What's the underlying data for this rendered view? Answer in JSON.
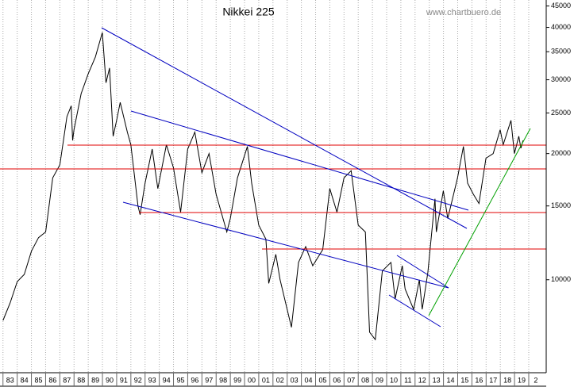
{
  "chart_data": {
    "type": "line",
    "title": "Nikkei 225",
    "subtitle": "www.chartbuero.de",
    "x": [
      1983.0,
      1983.5,
      1984.0,
      1984.5,
      1985.0,
      1985.5,
      1986.0,
      1986.5,
      1987.0,
      1987.5,
      1987.8,
      1987.9,
      1988.0,
      1988.5,
      1989.0,
      1989.5,
      1989.99,
      1990.25,
      1990.5,
      1990.75,
      1991.0,
      1991.25,
      1991.75,
      1992.0,
      1992.5,
      1992.65,
      1993.0,
      1993.5,
      1993.9,
      1994.5,
      1995.0,
      1995.5,
      1996.0,
      1996.5,
      1997.0,
      1997.5,
      1998.0,
      1998.75,
      1999.0,
      1999.5,
      2000.2,
      2000.5,
      2001.0,
      2001.5,
      2001.7,
      2002.2,
      2002.5,
      2003.3,
      2003.8,
      2004.3,
      2004.8,
      2005.5,
      2006.0,
      2006.5,
      2007.0,
      2007.5,
      2008.0,
      2008.5,
      2008.8,
      2009.2,
      2009.7,
      2010.3,
      2010.6,
      2011.1,
      2011.3,
      2011.9,
      2012.3,
      2012.5,
      2012.9,
      2013.4,
      2013.5,
      2013.99,
      2014.3,
      2014.99,
      2015.4,
      2015.7,
      2016.1,
      2016.5,
      2016.99,
      2017.5,
      2017.99,
      2018.2,
      2018.75,
      2018.99,
      2019.3,
      2019.45,
      2019.6
    ],
    "values": [
      8000,
      8800,
      9900,
      10300,
      11700,
      12600,
      13000,
      17500,
      18800,
      24500,
      26000,
      21500,
      22800,
      27800,
      31000,
      34000,
      38900,
      29500,
      32000,
      22000,
      24000,
      26500,
      22500,
      21000,
      15000,
      14300,
      17000,
      20500,
      16500,
      21000,
      18500,
      14500,
      20500,
      22500,
      18000,
      20000,
      16000,
      13000,
      14000,
      17500,
      20800,
      17000,
      13500,
      12500,
      9800,
      11500,
      10000,
      7700,
      11000,
      12000,
      10800,
      11800,
      16500,
      14500,
      17500,
      18200,
      13500,
      13000,
      7500,
      7200,
      10500,
      11000,
      9000,
      10800,
      9500,
      8500,
      10000,
      8500,
      10400,
      15600,
      13000,
      16300,
      14000,
      17500,
      20800,
      17000,
      16000,
      15200,
      19500,
      20000,
      22800,
      21000,
      24000,
      20000,
      22000,
      20600,
      21500
    ],
    "color": "#000000",
    "log_scale": true,
    "grid": true,
    "xlim": [
      1982.79,
      2021.23
    ],
    "ylim": [
      6000,
      46500
    ],
    "yticks": [
      10000,
      15000,
      20000,
      25000,
      30000,
      35000,
      40000,
      45000
    ],
    "xticks": [
      {
        "value": 1983,
        "label": "83"
      },
      {
        "value": 1984,
        "label": "84"
      },
      {
        "value": 1985,
        "label": "85"
      },
      {
        "value": 1986,
        "label": "86"
      },
      {
        "value": 1987,
        "label": "87"
      },
      {
        "value": 1988,
        "label": "88"
      },
      {
        "value": 1989,
        "label": "89"
      },
      {
        "value": 1990,
        "label": "90"
      },
      {
        "value": 1991,
        "label": "91"
      },
      {
        "value": 1992,
        "label": "92"
      },
      {
        "value": 1993,
        "label": "93"
      },
      {
        "value": 1994,
        "label": "94"
      },
      {
        "value": 1995,
        "label": "95"
      },
      {
        "value": 1996,
        "label": "96"
      },
      {
        "value": 1997,
        "label": "97"
      },
      {
        "value": 1998,
        "label": "98"
      },
      {
        "value": 1999,
        "label": "99"
      },
      {
        "value": 2000,
        "label": "00"
      },
      {
        "value": 2001,
        "label": "01"
      },
      {
        "value": 2002,
        "label": "02"
      },
      {
        "value": 2003,
        "label": "03"
      },
      {
        "value": 2004,
        "label": "04"
      },
      {
        "value": 2005,
        "label": "05"
      },
      {
        "value": 2006,
        "label": "06"
      },
      {
        "value": 2007,
        "label": "07"
      },
      {
        "value": 2008,
        "label": "08"
      },
      {
        "value": 2009,
        "label": "09"
      },
      {
        "value": 2010,
        "label": "10"
      },
      {
        "value": 2011,
        "label": "11"
      },
      {
        "value": 2012,
        "label": "12"
      },
      {
        "value": 2013,
        "label": "13"
      },
      {
        "value": 2014,
        "label": "14"
      },
      {
        "value": 2015,
        "label": "15"
      },
      {
        "value": 2016,
        "label": "16"
      },
      {
        "value": 2017,
        "label": "17"
      },
      {
        "value": 2018,
        "label": "18"
      },
      {
        "value": 2019,
        "label": "19"
      },
      {
        "value": 2020,
        "label": "2"
      }
    ]
  }
}
